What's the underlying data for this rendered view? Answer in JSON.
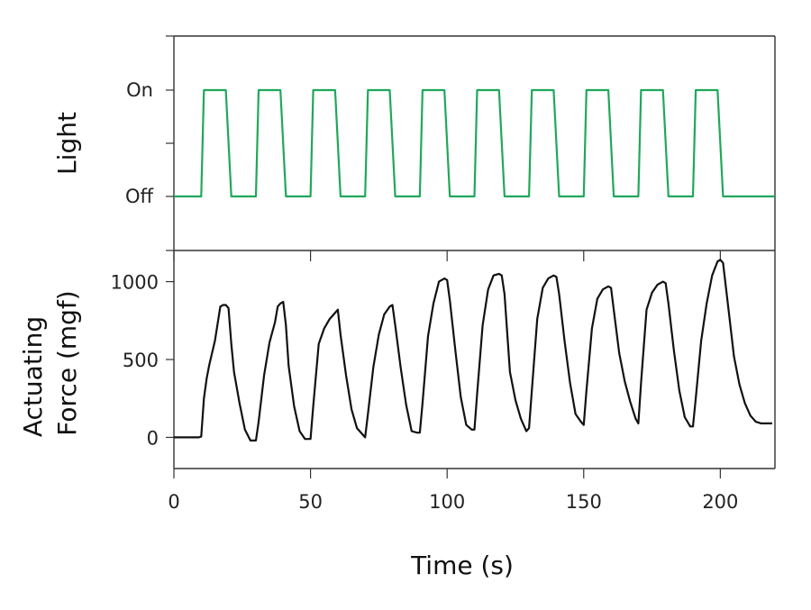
{
  "chart_data": [
    {
      "type": "line",
      "ylabel": "Light",
      "ytick_labels": [
        "On",
        "Off"
      ],
      "colors": {
        "series": "#1fa85a"
      },
      "series": [
        {
          "x": [
            0,
            10,
            11,
            19,
            21,
            30,
            31,
            39,
            41,
            50,
            51,
            59,
            61,
            70,
            71,
            79,
            81,
            90,
            91,
            99,
            101,
            110,
            111,
            119,
            121,
            130,
            131,
            139,
            141,
            150,
            151,
            159,
            161,
            170,
            171,
            179,
            181,
            190,
            191,
            199,
            201,
            220
          ],
          "y": [
            0,
            0,
            1,
            1,
            0,
            0,
            1,
            1,
            0,
            0,
            1,
            1,
            0,
            0,
            1,
            1,
            0,
            0,
            1,
            1,
            0,
            0,
            1,
            1,
            0,
            0,
            1,
            1,
            0,
            0,
            1,
            1,
            0,
            0,
            1,
            1,
            0,
            0,
            1,
            1,
            0,
            0
          ]
        }
      ]
    },
    {
      "type": "line",
      "xlabel": "Time (s)",
      "ylabel_lines": [
        "Actuating",
        "Force (mgf)"
      ],
      "xlim": [
        0,
        220
      ],
      "ylim": [
        -200,
        1200
      ],
      "xticks": [
        0,
        50,
        100,
        150,
        200
      ],
      "yticks": [
        0,
        500,
        1000
      ],
      "colors": {
        "series": "#111111"
      },
      "series": [
        {
          "x": [
            0,
            9,
            10,
            11,
            12,
            13,
            15,
            17,
            18,
            19,
            20,
            21,
            22,
            24,
            26,
            28,
            29,
            30,
            31,
            33,
            35,
            37,
            38,
            39,
            40,
            41,
            42,
            44,
            46,
            48,
            49,
            50,
            51,
            53,
            55,
            57,
            59,
            60,
            61,
            63,
            65,
            67,
            69,
            70,
            71,
            73,
            75,
            77,
            79,
            80,
            81,
            83,
            85,
            87,
            89,
            90,
            91,
            93,
            95,
            97,
            99,
            100,
            101,
            103,
            105,
            107,
            109,
            110,
            111,
            113,
            115,
            117,
            119,
            120,
            121,
            123,
            125,
            127,
            129,
            130,
            131,
            133,
            135,
            137,
            139,
            140,
            141,
            143,
            145,
            147,
            149,
            150,
            151,
            153,
            155,
            157,
            159,
            160,
            161,
            163,
            165,
            167,
            169,
            170,
            171,
            173,
            175,
            177,
            179,
            180,
            181,
            183,
            185,
            187,
            189,
            190,
            191,
            193,
            195,
            197,
            199,
            200,
            201,
            203,
            205,
            207,
            209,
            211,
            213,
            215,
            217,
            219
          ],
          "y": [
            0,
            0,
            5,
            250,
            380,
            470,
            620,
            840,
            850,
            850,
            830,
            600,
            420,
            220,
            50,
            -20,
            -20,
            -20,
            100,
            400,
            610,
            740,
            840,
            860,
            870,
            720,
            460,
            200,
            40,
            -10,
            -10,
            -10,
            200,
            600,
            700,
            760,
            800,
            820,
            660,
            400,
            180,
            60,
            20,
            0,
            150,
            450,
            660,
            790,
            840,
            850,
            720,
            450,
            210,
            40,
            30,
            30,
            220,
            650,
            860,
            1000,
            1020,
            1010,
            880,
            560,
            260,
            80,
            50,
            50,
            280,
            720,
            950,
            1040,
            1050,
            1040,
            920,
            420,
            240,
            120,
            40,
            60,
            300,
            760,
            960,
            1020,
            1040,
            1030,
            920,
            620,
            350,
            150,
            100,
            80,
            300,
            700,
            890,
            950,
            970,
            960,
            820,
            540,
            360,
            230,
            120,
            90,
            350,
            820,
            930,
            980,
            1000,
            990,
            860,
            560,
            300,
            130,
            70,
            70,
            250,
            620,
            860,
            1040,
            1130,
            1140,
            1120,
            820,
            520,
            340,
            220,
            140,
            100,
            90,
            90,
            90
          ]
        }
      ]
    }
  ]
}
